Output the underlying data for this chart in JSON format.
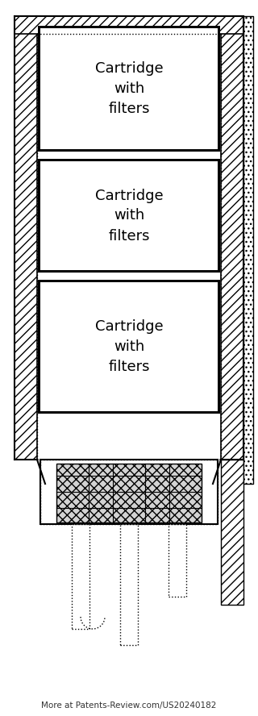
{
  "bg_color": "#ffffff",
  "text_color": "#000000",
  "hatch_color": "#555555",
  "cartridge_labels": [
    "Cartridge\nwith\nfilters",
    "Cartridge\nwith\nfilters",
    "Cartridge\nwith\nfilters"
  ],
  "footer_text": "More at Patents-Review.com/US20240182",
  "fig_width": 3.2,
  "fig_height": 8.88,
  "dpi": 100
}
